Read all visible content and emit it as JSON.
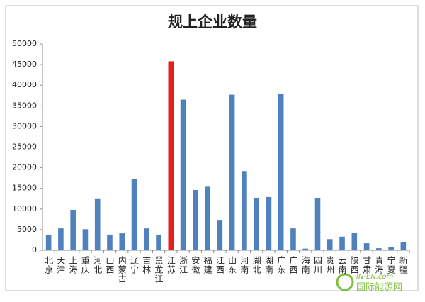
{
  "chart_data": {
    "type": "bar",
    "title": "规上企业数量",
    "categories": [
      "北京",
      "天津",
      "上海",
      "重庆",
      "河北",
      "山西",
      "内蒙古",
      "辽宁",
      "吉林",
      "黑龙江",
      "江苏",
      "浙江",
      "安徽",
      "福建",
      "江西",
      "山东",
      "河南",
      "湖北",
      "湖南",
      "广东",
      "广西",
      "海南",
      "四川",
      "贵州",
      "云南",
      "陕西",
      "甘肃",
      "青海",
      "宁夏",
      "新疆"
    ],
    "values": [
      3700,
      5300,
      9800,
      5100,
      12400,
      3800,
      4100,
      17300,
      5300,
      3800,
      45800,
      36500,
      14600,
      15400,
      7200,
      37700,
      19200,
      12600,
      12900,
      37800,
      5300,
      400,
      12700,
      2700,
      3300,
      4300,
      1700,
      500,
      800,
      1900
    ],
    "colors": [
      "#4f81bd",
      "#4f81bd",
      "#4f81bd",
      "#4f81bd",
      "#4f81bd",
      "#4f81bd",
      "#4f81bd",
      "#4f81bd",
      "#4f81bd",
      "#4f81bd",
      "#e3201b",
      "#4f81bd",
      "#4f81bd",
      "#4f81bd",
      "#4f81bd",
      "#4f81bd",
      "#4f81bd",
      "#4f81bd",
      "#4f81bd",
      "#4f81bd",
      "#4f81bd",
      "#4f81bd",
      "#4f81bd",
      "#4f81bd",
      "#4f81bd",
      "#4f81bd",
      "#4f81bd",
      "#4f81bd",
      "#4f81bd",
      "#4f81bd"
    ],
    "ylim": [
      0,
      50000
    ],
    "yticks": [
      0,
      5000,
      10000,
      15000,
      20000,
      25000,
      30000,
      35000,
      40000,
      45000,
      50000
    ],
    "grid": false
  },
  "watermark": {
    "site": "IN-EN.com",
    "name": "国际能源网"
  }
}
